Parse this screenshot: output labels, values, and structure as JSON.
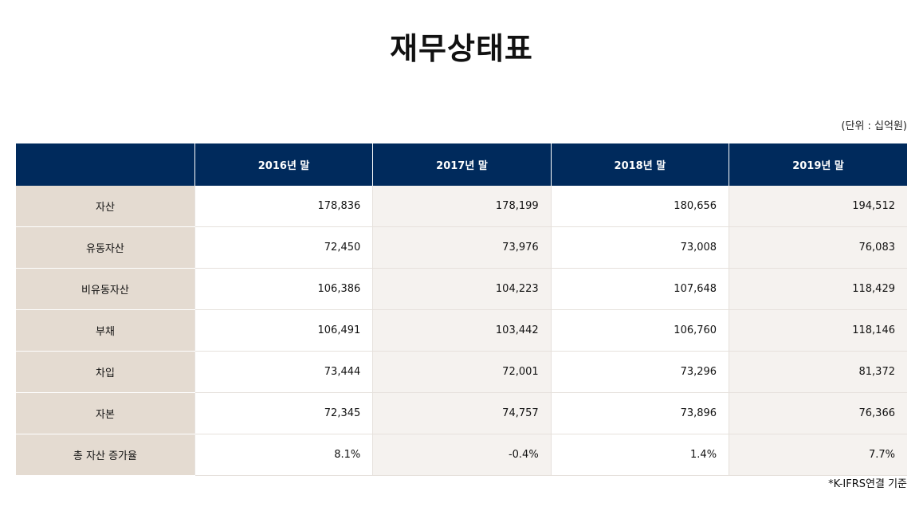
{
  "title": "재무상태표",
  "unit_note": "(단위 : 십억원)",
  "table": {
    "headers": [
      "",
      "2016년 말",
      "2017년 말",
      "2018년 말",
      "2019년 말"
    ],
    "rows": [
      {
        "label": "자산",
        "values": [
          "178,836",
          "178,199",
          "180,656",
          "194,512"
        ]
      },
      {
        "label": "유동자산",
        "values": [
          "72,450",
          "73,976",
          "73,008",
          "76,083"
        ]
      },
      {
        "label": "비유동자산",
        "values": [
          "106,386",
          "104,223",
          "107,648",
          "118,429"
        ]
      },
      {
        "label": "부채",
        "values": [
          "106,491",
          "103,442",
          "106,760",
          "118,146"
        ]
      },
      {
        "label": "차입",
        "values": [
          "73,444",
          "72,001",
          "73,296",
          "81,372"
        ]
      },
      {
        "label": "자본",
        "values": [
          "72,345",
          "74,757",
          "73,896",
          "76,366"
        ]
      },
      {
        "label": "총 자산 증가율",
        "values": [
          "8.1%",
          "-0.4%",
          "1.4%",
          "7.7%"
        ]
      }
    ]
  },
  "footnote": "*K-IFRS연결 기준",
  "colors": {
    "header_bg": "#002a5c",
    "label_bg": "#e4dbd1",
    "alt_col_bg": "#f5f2ef"
  }
}
